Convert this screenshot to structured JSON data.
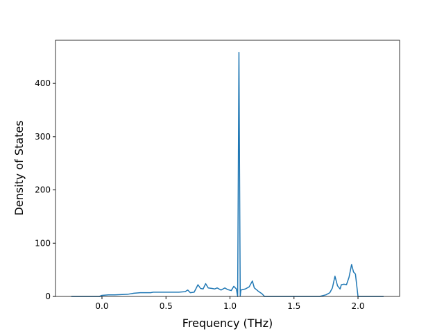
{
  "chart_data": {
    "type": "line",
    "xlabel": "Frequency (THz)",
    "ylabel": "Density of States",
    "x": [
      -0.24,
      -0.02,
      0.0,
      0.05,
      0.1,
      0.2,
      0.25,
      0.3,
      0.38,
      0.4,
      0.45,
      0.5,
      0.6,
      0.65,
      0.67,
      0.69,
      0.72,
      0.75,
      0.77,
      0.79,
      0.81,
      0.83,
      0.86,
      0.88,
      0.9,
      0.93,
      0.96,
      0.98,
      1.01,
      1.03,
      1.05,
      1.06,
      1.07,
      1.08,
      1.085,
      1.12,
      1.15,
      1.175,
      1.19,
      1.22,
      1.25,
      1.27,
      1.7,
      1.75,
      1.78,
      1.8,
      1.82,
      1.84,
      1.86,
      1.87,
      1.89,
      1.91,
      1.93,
      1.95,
      1.965,
      1.98,
      2.0,
      2.2
    ],
    "series": [
      {
        "color": "#1f77b4",
        "values": [
          0,
          0,
          2,
          3,
          3,
          4,
          6,
          7,
          7,
          8,
          8,
          8,
          8,
          9,
          12,
          7,
          8,
          22,
          15,
          14,
          24,
          16,
          15,
          14,
          16,
          12,
          16,
          13,
          11,
          19,
          14,
          0,
          458,
          1,
          12,
          14,
          18,
          29,
          16,
          10,
          5,
          0,
          0,
          3,
          7,
          16,
          38,
          20,
          14,
          22,
          23,
          22,
          36,
          60,
          46,
          42,
          0,
          0
        ]
      }
    ],
    "xlim": [
      -0.363,
      2.325
    ],
    "ylim": [
      0,
      481
    ],
    "xticks": [
      {
        "value": 0,
        "label": "0.0"
      },
      0.5,
      {
        "value": 1,
        "label": "1.0"
      },
      1.5,
      {
        "value": 2,
        "label": "2.0"
      }
    ],
    "yticks": [
      0,
      100,
      200,
      300,
      400
    ]
  }
}
